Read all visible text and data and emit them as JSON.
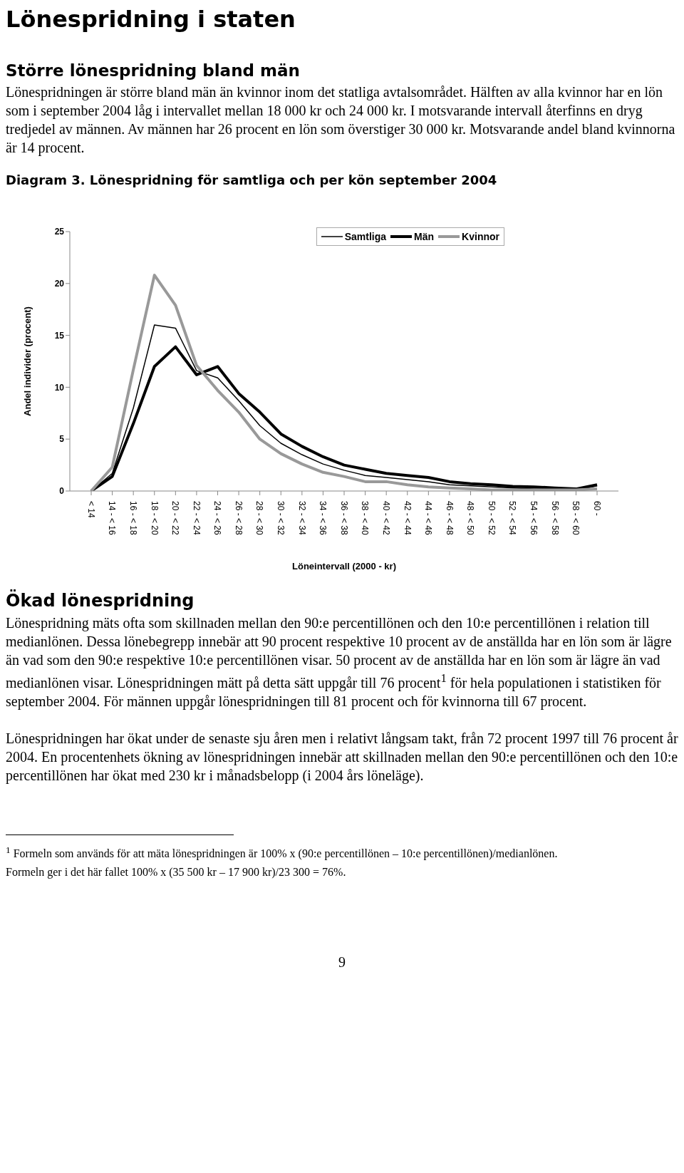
{
  "chart_data": {
    "type": "line",
    "title": "Diagram 3. Lönespridning för samtliga och per kön september 2004",
    "xlabel": "Löneintervall (2000 - kr)",
    "ylabel": "Andel individer (procent)",
    "categories": [
      "< 14",
      "14 - < 16",
      "16 - < 18",
      "18 - < 20",
      "20 - < 22",
      "22 - < 24",
      "24 - < 26",
      "26 - < 28",
      "28 - < 30",
      "30 - < 32",
      "32 - < 34",
      "34 - < 36",
      "36 - < 38",
      "38 - < 40",
      "40 - < 42",
      "42 - < 44",
      "44 - < 46",
      "46 - < 48",
      "48 - < 50",
      "50 - < 52",
      "52 - < 54",
      "54 - < 56",
      "56 - < 58",
      "58 - < 60",
      "60 -"
    ],
    "series": [
      {
        "name": "Samtliga",
        "color": "#000000",
        "values": [
          0,
          1.7,
          8.0,
          16.0,
          15.7,
          11.6,
          10.9,
          8.7,
          6.3,
          4.6,
          3.5,
          2.6,
          2.0,
          1.5,
          1.3,
          1.1,
          0.9,
          0.6,
          0.5,
          0.4,
          0.3,
          0.2,
          0.2,
          0.1,
          0.5
        ]
      },
      {
        "name": "Män",
        "color": "#000000",
        "values": [
          0,
          1.4,
          6.5,
          12.0,
          13.9,
          11.2,
          12.0,
          9.4,
          7.6,
          5.5,
          4.3,
          3.3,
          2.5,
          2.1,
          1.7,
          1.5,
          1.3,
          0.9,
          0.7,
          0.6,
          0.45,
          0.4,
          0.3,
          0.2,
          0.6
        ]
      },
      {
        "name": "Kvinnor",
        "color": "#999999",
        "values": [
          0,
          2.3,
          11.7,
          20.8,
          17.9,
          12.1,
          9.7,
          7.6,
          5.0,
          3.6,
          2.6,
          1.8,
          1.4,
          0.9,
          0.9,
          0.6,
          0.4,
          0.3,
          0.2,
          0.1,
          0.1,
          0.1,
          0.1,
          0.1,
          0.2
        ]
      }
    ],
    "ylim": [
      0,
      25
    ],
    "yticks": [
      0,
      5,
      10,
      15,
      20,
      25
    ],
    "legend": "top right",
    "marker": "none",
    "line_style": "solid",
    "annotations": [
      "Lönespridning i staten",
      "Större lönespridning bland män",
      "Lönespridningen är större bland män än kvinnor inom det statliga avtalsområdet. Hälften av alla kvinnor har en lön som i september 2004 låg i intervallet mellan 18 000 kr och 24 000 kr. I motsvarande intervall återfinns en dryg tredjedel av männen. Av männen har 26 procent en lön som överstiger 30 000 kr. Motsvarande andel bland kvinnorna är 14 procent.",
      "Ökad lönespridning",
      "Lönespridning mäts ofta som skillnaden mellan den 90:e percentillönen och den 10:e percentillönen i relation till medianlönen. Dessa lönebegrepp innebär att 90 procent respektive 10 procent av de anställda har en lön som är lägre än vad som den 90:e respektive 10:e percentillönen visar. 50 procent av de anställda har en lön som är lägre än vad medianlönen visar. Lönespridningen mätt på detta sätt uppgår till 76 procent$^{1}$ för hela populationen i statistiken för september 2004. För männen uppgår lönespridningen till 81 procent och för kvinnorna till 67 procent.",
      "Lönespridningen har ökat under de senaste sju åren men i relativt långsam takt, från 72 procent 1997 till 76 procent år 2004. En procentenhets ökning av lönespridningen innebär att skillnaden mellan den 90:e percentillönen och den 10:e percentillönen har ökat med 230 kr i månadsbelopp (i 2004 års löneläge).",
      "$^{1}$ Formeln som används för att mäta lönespridningen är 100% x (90:e percentillönen – 10:e percentillönen)/medianlönen.",
      "Formeln ger i det här fallet 100% x (35 500 kr – 17 900 kr)/23 300 = 76%.",
      "9"
    ]
  }
}
